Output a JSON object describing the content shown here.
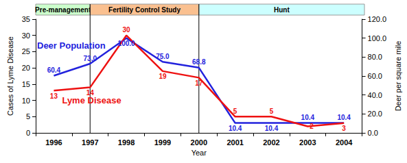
{
  "chart_data": {
    "type": "line",
    "x_label": "Year",
    "y_label": "Cases of Lyme Disease",
    "y2_label": "Deer per square mile",
    "categories": [
      "1996",
      "1997",
      "1998",
      "1999",
      "2000",
      "2001",
      "2002",
      "2003",
      "2004"
    ],
    "series": [
      {
        "name": "Deer Population",
        "color": "#2222dd",
        "axis": "y2",
        "values": [
          60.4,
          73,
          100,
          75,
          68.8,
          10.4,
          10.4,
          10.4,
          10.4
        ],
        "value_labels": [
          "60.4",
          "73.0",
          "100.0",
          "75.0",
          "68.8",
          "10.4",
          "10.4",
          "10.4",
          "10.4"
        ]
      },
      {
        "name": "Lyme Disease",
        "color": "#ee1111",
        "values": [
          13,
          14,
          30,
          19,
          17,
          5,
          5,
          2,
          3
        ]
      }
    ],
    "ylim": [
      0,
      35
    ],
    "yticks": [
      0,
      5,
      10,
      15,
      20,
      25,
      30,
      35
    ],
    "y2lim": [
      0,
      120
    ],
    "y2ticks": [
      {
        "value": 0,
        "label": "0.0"
      },
      {
        "value": 20,
        "label": "20.0"
      },
      {
        "value": 40,
        "label": "40.0"
      },
      {
        "value": 60,
        "label": "60.0"
      },
      {
        "value": 80,
        "label": "80.0"
      },
      {
        "value": 100,
        "label": "100.0"
      },
      {
        "value": 120,
        "label": "120.0"
      }
    ],
    "phases": [
      {
        "label": "Pre-management",
        "color": "#ccffcc"
      },
      {
        "label": "Fertility Control Study",
        "color": "#fac090"
      },
      {
        "label": "Hunt",
        "color": "#ccffff"
      }
    ],
    "phase_breaks": [
      "1997",
      "2000"
    ],
    "data_labels": true,
    "grid": false
  }
}
